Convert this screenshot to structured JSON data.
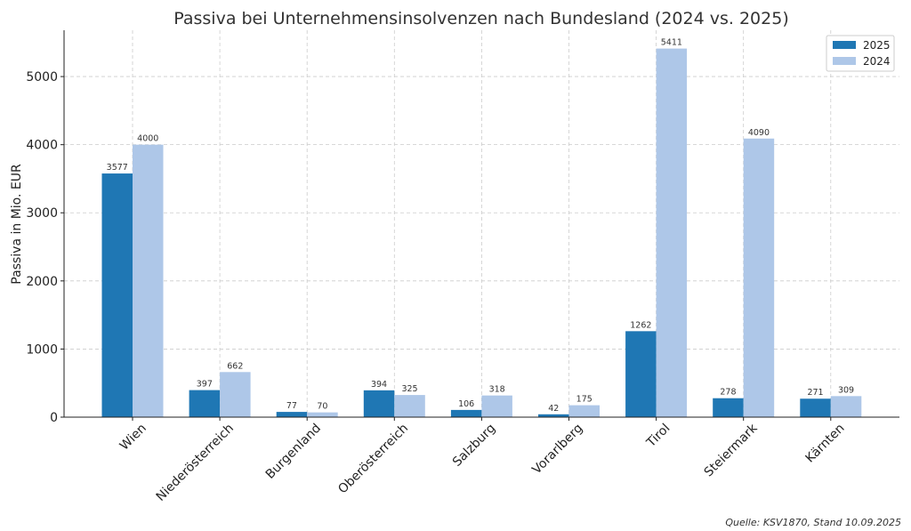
{
  "chart_data": {
    "type": "bar",
    "title": "Passiva bei Unternehmensinsolvenzen nach Bundesland (2024 vs. 2025)",
    "xlabel": "",
    "ylabel": "Passiva in Mio. EUR",
    "categories": [
      "Wien",
      "Niederösterreich",
      "Burgenland",
      "Oberösterreich",
      "Salzburg",
      "Vorarlberg",
      "Tirol",
      "Steiermark",
      "Kärnten"
    ],
    "series": [
      {
        "name": "2025",
        "color": "#1f77b4",
        "values": [
          3577,
          397,
          77,
          394,
          106,
          42,
          1262,
          278,
          271
        ]
      },
      {
        "name": "2024",
        "color": "#aec7e8",
        "values": [
          4000,
          662,
          70,
          325,
          318,
          175,
          5411,
          4090,
          309
        ]
      }
    ],
    "ylim": [
      0,
      5680
    ],
    "yticks": [
      0,
      1000,
      2000,
      3000,
      4000,
      5000
    ],
    "grid": true,
    "legend_position": "top-right",
    "source": "Quelle: KSV1870, Stand 10.09.2025"
  }
}
